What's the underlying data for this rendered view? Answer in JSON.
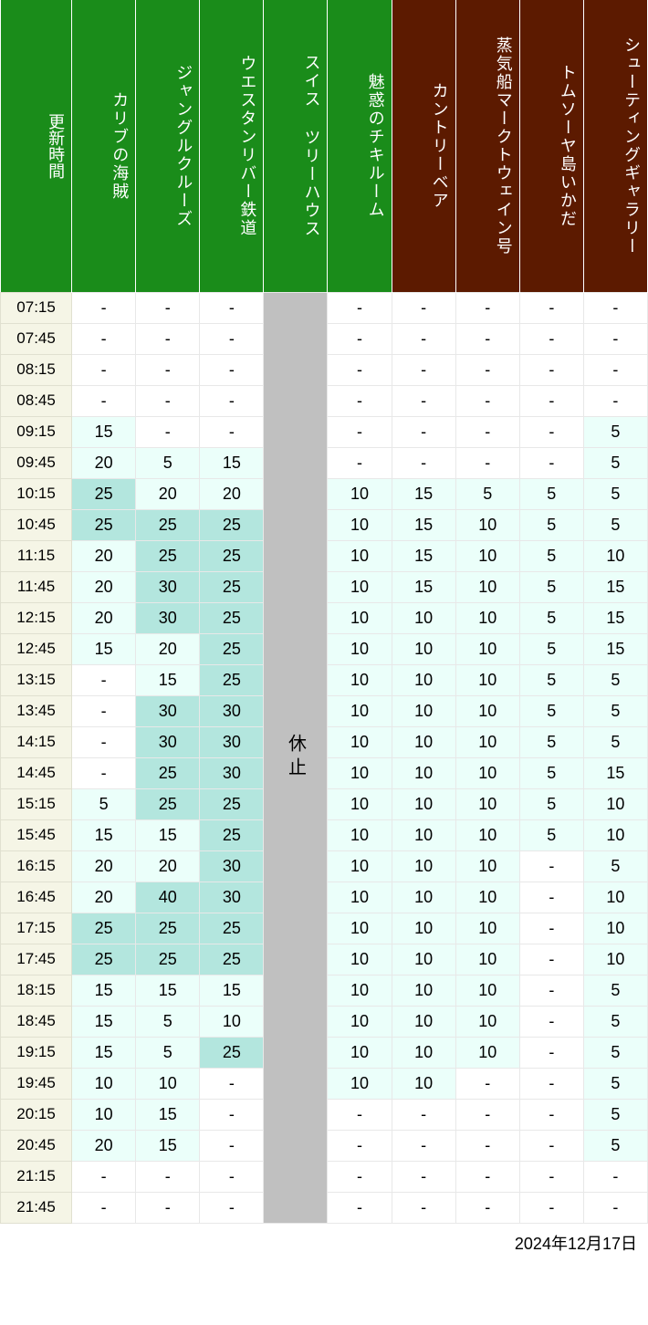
{
  "date_label": "2024年12月17日",
  "time_header": "更新時間",
  "closed_label": "休止",
  "colors": {
    "green_header": "#1a8c1a",
    "brown_header": "#5c1a00",
    "time_col_bg": "#f5f5e6",
    "closed_bg": "#c0c0c0",
    "shade_0": "#ffffff",
    "shade_1": "#ebfffa",
    "shade_2": "#b3e6de"
  },
  "shade_thresholds": {
    "shade_2_min": 25,
    "shade_1_min": 5
  },
  "attractions": [
    {
      "name": "カリブの海賊",
      "color": "green"
    },
    {
      "name": "ジャングルクルーズ",
      "color": "green"
    },
    {
      "name": "ウエスタンリバー鉄道",
      "color": "green"
    },
    {
      "name": "スイス ツリーハウス",
      "color": "green",
      "closed": true
    },
    {
      "name": "魅惑のチキルーム",
      "color": "green"
    },
    {
      "name": "カントリーベア",
      "color": "brown"
    },
    {
      "name": "蒸気船マークトウェイン号",
      "color": "brown"
    },
    {
      "name": "トムソーヤ島いかだ",
      "color": "brown"
    },
    {
      "name": "シューティングギャラリー",
      "color": "brown"
    }
  ],
  "times": [
    "07:15",
    "07:45",
    "08:15",
    "08:45",
    "09:15",
    "09:45",
    "10:15",
    "10:45",
    "11:15",
    "11:45",
    "12:15",
    "12:45",
    "13:15",
    "13:45",
    "14:15",
    "14:45",
    "15:15",
    "15:45",
    "16:15",
    "16:45",
    "17:15",
    "17:45",
    "18:15",
    "18:45",
    "19:15",
    "19:45",
    "20:15",
    "20:45",
    "21:15",
    "21:45"
  ],
  "data": [
    [
      "-",
      "-",
      "-",
      null,
      "-",
      "-",
      "-",
      "-",
      "-"
    ],
    [
      "-",
      "-",
      "-",
      null,
      "-",
      "-",
      "-",
      "-",
      "-"
    ],
    [
      "-",
      "-",
      "-",
      null,
      "-",
      "-",
      "-",
      "-",
      "-"
    ],
    [
      "-",
      "-",
      "-",
      null,
      "-",
      "-",
      "-",
      "-",
      "-"
    ],
    [
      15,
      "-",
      "-",
      null,
      "-",
      "-",
      "-",
      "-",
      5
    ],
    [
      20,
      5,
      15,
      null,
      "-",
      "-",
      "-",
      "-",
      5
    ],
    [
      25,
      20,
      20,
      null,
      10,
      15,
      5,
      5,
      5
    ],
    [
      25,
      25,
      25,
      null,
      10,
      15,
      10,
      5,
      5
    ],
    [
      20,
      25,
      25,
      null,
      10,
      15,
      10,
      5,
      10
    ],
    [
      20,
      30,
      25,
      null,
      10,
      15,
      10,
      5,
      15
    ],
    [
      20,
      30,
      25,
      null,
      10,
      10,
      10,
      5,
      15
    ],
    [
      15,
      20,
      25,
      null,
      10,
      10,
      10,
      5,
      15
    ],
    [
      "-",
      15,
      25,
      null,
      10,
      10,
      10,
      5,
      5
    ],
    [
      "-",
      30,
      30,
      null,
      10,
      10,
      10,
      5,
      5
    ],
    [
      "-",
      30,
      30,
      null,
      10,
      10,
      10,
      5,
      5
    ],
    [
      "-",
      25,
      30,
      null,
      10,
      10,
      10,
      5,
      15
    ],
    [
      5,
      25,
      25,
      null,
      10,
      10,
      10,
      5,
      10
    ],
    [
      15,
      15,
      25,
      null,
      10,
      10,
      10,
      5,
      10
    ],
    [
      20,
      20,
      30,
      null,
      10,
      10,
      10,
      "-",
      5
    ],
    [
      20,
      40,
      30,
      null,
      10,
      10,
      10,
      "-",
      10
    ],
    [
      25,
      25,
      25,
      null,
      10,
      10,
      10,
      "-",
      10
    ],
    [
      25,
      25,
      25,
      null,
      10,
      10,
      10,
      "-",
      10
    ],
    [
      15,
      15,
      15,
      null,
      10,
      10,
      10,
      "-",
      5
    ],
    [
      15,
      5,
      10,
      null,
      10,
      10,
      10,
      "-",
      5
    ],
    [
      15,
      5,
      25,
      null,
      10,
      10,
      10,
      "-",
      5
    ],
    [
      10,
      10,
      "-",
      null,
      10,
      10,
      "-",
      "-",
      5
    ],
    [
      10,
      15,
      "-",
      null,
      "-",
      "-",
      "-",
      "-",
      5
    ],
    [
      20,
      15,
      "-",
      null,
      "-",
      "-",
      "-",
      "-",
      5
    ],
    [
      "-",
      "-",
      "-",
      null,
      "-",
      "-",
      "-",
      "-",
      "-"
    ],
    [
      "-",
      "-",
      "-",
      null,
      "-",
      "-",
      "-",
      "-",
      "-"
    ]
  ]
}
